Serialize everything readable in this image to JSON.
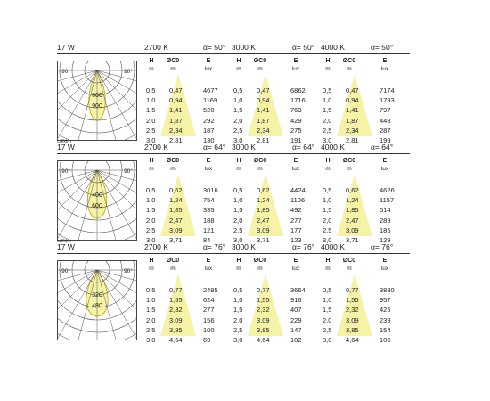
{
  "colors": {
    "cone": "#f6f3a6",
    "lobe": "#f6f3a6",
    "grid": "#555555",
    "rule": "#333333"
  },
  "blocks": [
    {
      "power": "17 W",
      "cd_unit": "cd/klm",
      "angle_left": "-90°",
      "angle_right": "90°",
      "iso_labels": [
        "600",
        "900"
      ],
      "groups": [
        {
          "cct": "2700 K",
          "alpha": "α= 50°",
          "headers": {
            "h": "H",
            "h_unit": "m",
            "d": "ØC0",
            "d_unit": "m",
            "e": "E",
            "e_unit": "lux"
          },
          "rows": [
            [
              "0,5",
              "0,47",
              "4677"
            ],
            [
              "1,0",
              "0,94",
              "1169"
            ],
            [
              "1,5",
              "1,41",
              "520"
            ],
            [
              "2,0",
              "1,87",
              "292"
            ],
            [
              "2,5",
              "2,34",
              "187"
            ],
            [
              "3,0",
              "2,81",
              "130"
            ]
          ]
        },
        {
          "cct": "3000 K",
          "alpha": "α= 50°",
          "headers": {
            "h": "H",
            "h_unit": "m",
            "d": "ØC0",
            "d_unit": "m",
            "e": "E",
            "e_unit": "lux"
          },
          "rows": [
            [
              "0,5",
              "0,47",
              "6862"
            ],
            [
              "1,0",
              "0,94",
              "1716"
            ],
            [
              "1,5",
              "1,41",
              "763"
            ],
            [
              "2,0",
              "1,87",
              "429"
            ],
            [
              "2,5",
              "2,34",
              "275"
            ],
            [
              "3,0",
              "2,81",
              "191"
            ]
          ]
        },
        {
          "cct": "4000 K",
          "alpha": "α= 50°",
          "headers": {
            "h": "H",
            "h_unit": "m",
            "d": "ØC0",
            "d_unit": "m",
            "e": "E",
            "e_unit": "lux"
          },
          "rows": [
            [
              "0,5",
              "0,47",
              "7174"
            ],
            [
              "1,0",
              "0,94",
              "1793"
            ],
            [
              "1,5",
              "1,41",
              "797"
            ],
            [
              "2,0",
              "1,87",
              "448"
            ],
            [
              "2,5",
              "2,34",
              "287"
            ],
            [
              "3,0",
              "2,81",
              "199"
            ]
          ]
        }
      ]
    },
    {
      "power": "17 W",
      "cd_unit": "cd/klm",
      "angle_left": "-90°",
      "angle_right": "90°",
      "iso_labels": [
        "400",
        "600"
      ],
      "groups": [
        {
          "cct": "2700 K",
          "alpha": "α= 64°",
          "headers": {
            "h": "H",
            "h_unit": "m",
            "d": "ØC0",
            "d_unit": "m",
            "e": "E",
            "e_unit": "lux"
          },
          "rows": [
            [
              "0,5",
              "0,62",
              "3016"
            ],
            [
              "1,0",
              "1,24",
              "754"
            ],
            [
              "1,5",
              "1,85",
              "335"
            ],
            [
              "2,0",
              "2,47",
              "188"
            ],
            [
              "2,5",
              "3,09",
              "121"
            ],
            [
              "3,0",
              "3,71",
              "84"
            ]
          ]
        },
        {
          "cct": "3000 K",
          "alpha": "α= 64°",
          "headers": {
            "h": "H",
            "h_unit": "m",
            "d": "ØC0",
            "d_unit": "m",
            "e": "E",
            "e_unit": "lux"
          },
          "rows": [
            [
              "0,5",
              "0,62",
              "4424"
            ],
            [
              "1,0",
              "1,24",
              "1106"
            ],
            [
              "1,5",
              "1,85",
              "492"
            ],
            [
              "2,0",
              "2,47",
              "277"
            ],
            [
              "2,5",
              "3,09",
              "177"
            ],
            [
              "3,0",
              "3,71",
              "123"
            ]
          ]
        },
        {
          "cct": "4000 K",
          "alpha": "α= 64°",
          "headers": {
            "h": "H",
            "h_unit": "m",
            "d": "ØC0",
            "d_unit": "m",
            "e": "E",
            "e_unit": "lux"
          },
          "rows": [
            [
              "0,5",
              "0,62",
              "4626"
            ],
            [
              "1,0",
              "1,24",
              "1157"
            ],
            [
              "1,5",
              "1,85",
              "514"
            ],
            [
              "2,0",
              "2,47",
              "289"
            ],
            [
              "2,5",
              "3,09",
              "185"
            ],
            [
              "3,0",
              "3,71",
              "129"
            ]
          ]
        }
      ]
    },
    {
      "power": "17 W",
      "cd_unit": "",
      "angle_left": "-90°",
      "angle_right": "90°",
      "iso_labels": [
        "320",
        "480"
      ],
      "groups": [
        {
          "cct": "2700 K",
          "alpha": "α= 76°",
          "headers": {
            "h": "H",
            "h_unit": "m",
            "d": "ØC0",
            "d_unit": "m",
            "e": "E",
            "e_unit": "lux"
          },
          "rows": [
            [
              "0,5",
              "0,77",
              "2495"
            ],
            [
              "1,0",
              "1,55",
              "624"
            ],
            [
              "1,5",
              "2,32",
              "277"
            ],
            [
              "2,0",
              "3,09",
              "156"
            ],
            [
              "2,5",
              "3,85",
              "100"
            ],
            [
              "3,0",
              "4,64",
              "69"
            ]
          ]
        },
        {
          "cct": "3000 K",
          "alpha": "α= 76°",
          "headers": {
            "h": "H",
            "h_unit": "m",
            "d": "ØC0",
            "d_unit": "m",
            "e": "E",
            "e_unit": "lux"
          },
          "rows": [
            [
              "0,5",
              "0,77",
              "3664"
            ],
            [
              "1,0",
              "1,55",
              "916"
            ],
            [
              "1,5",
              "2,32",
              "407"
            ],
            [
              "2,0",
              "3,09",
              "229"
            ],
            [
              "2,5",
              "3,85",
              "147"
            ],
            [
              "3,0",
              "4,64",
              "102"
            ]
          ]
        },
        {
          "cct": "4000 K",
          "alpha": "α= 76°",
          "headers": {
            "h": "H",
            "h_unit": "m",
            "d": "ØC0",
            "d_unit": "m",
            "e": "E",
            "e_unit": "lux"
          },
          "rows": [
            [
              "0,5",
              "0,77",
              "3830"
            ],
            [
              "1,0",
              "1,55",
              "957"
            ],
            [
              "1,5",
              "2,32",
              "425"
            ],
            [
              "2,0",
              "3,09",
              "239"
            ],
            [
              "2,5",
              "3,85",
              "154"
            ],
            [
              "3,0",
              "4,64",
              "106"
            ]
          ]
        }
      ]
    }
  ]
}
